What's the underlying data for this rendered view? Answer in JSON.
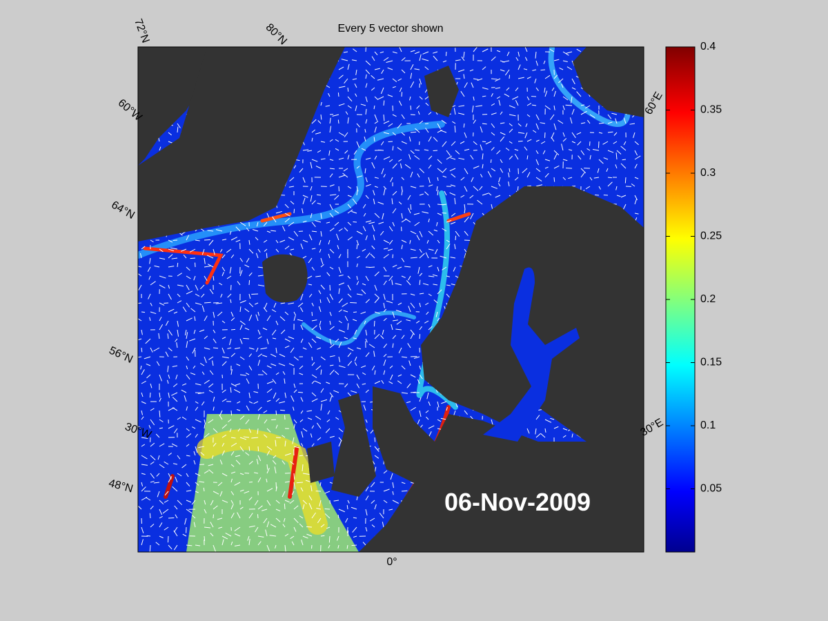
{
  "title": "Every 5 vector shown",
  "date": "06-Nov-2009",
  "graticule_labels": [
    "72°N",
    "80°N",
    "60°W",
    "64°N",
    "56°N",
    "30°W",
    "48°N",
    "0°",
    "30°E",
    "60°E"
  ],
  "colorbar": {
    "lim": [
      0,
      0.4
    ],
    "ticks": [
      0.05,
      0.1,
      0.15,
      0.2,
      0.25,
      0.3,
      0.35,
      0.4
    ]
  }
}
